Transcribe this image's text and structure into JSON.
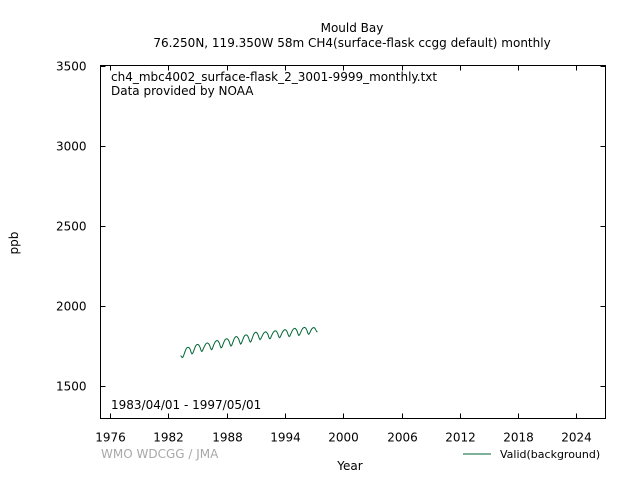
{
  "chart_data": {
    "type": "line",
    "title": "Mould Bay",
    "subtitle": "76.250N, 119.350W 58m    CH4(surface-flask ccgg default) monthly",
    "xlabel": "Year",
    "ylabel": "ppb",
    "xlim": [
      1975.0,
      2027.0
    ],
    "ylim": [
      1300,
      3500
    ],
    "xticks": [
      1976,
      1982,
      1988,
      1994,
      2000,
      2006,
      2012,
      2018,
      2024
    ],
    "yticks": [
      1500,
      2000,
      2500,
      3000,
      3500
    ],
    "grid": false,
    "legend_position": "bottom-right",
    "file_label": "ch4_mbc4002_surface-flask_2_3001-9999_monthly.txt",
    "provider_label": "Data provided by NOAA",
    "date_range_label": "1983/04/01 - 1997/05/01",
    "attribution": "WMO WDCGG / JMA",
    "series": [
      {
        "name": "Valid(background)",
        "color": "#006633",
        "x": [
          1983.25,
          1983.33,
          1983.42,
          1983.5,
          1983.58,
          1983.67,
          1983.75,
          1983.83,
          1983.92,
          1984.0,
          1984.08,
          1984.17,
          1984.25,
          1984.33,
          1984.42,
          1984.5,
          1984.58,
          1984.67,
          1984.75,
          1984.83,
          1984.92,
          1985.0,
          1985.08,
          1985.17,
          1985.25,
          1985.33,
          1985.42,
          1985.5,
          1985.58,
          1985.67,
          1985.75,
          1985.83,
          1985.92,
          1986.0,
          1986.08,
          1986.17,
          1986.25,
          1986.33,
          1986.42,
          1986.5,
          1986.58,
          1986.67,
          1986.75,
          1986.83,
          1986.92,
          1987.0,
          1987.08,
          1987.17,
          1987.25,
          1987.33,
          1987.42,
          1987.5,
          1987.58,
          1987.67,
          1987.75,
          1987.83,
          1987.92,
          1988.0,
          1988.08,
          1988.17,
          1988.25,
          1988.33,
          1988.42,
          1988.5,
          1988.58,
          1988.67,
          1988.75,
          1988.83,
          1988.92,
          1989.0,
          1989.08,
          1989.17,
          1989.25,
          1989.33,
          1989.42,
          1989.5,
          1989.58,
          1989.67,
          1989.75,
          1989.83,
          1989.92,
          1990.0,
          1990.08,
          1990.17,
          1990.25,
          1990.33,
          1990.42,
          1990.5,
          1990.58,
          1990.67,
          1990.75,
          1990.83,
          1990.92,
          1991.0,
          1991.08,
          1991.17,
          1991.25,
          1991.33,
          1991.42,
          1991.5,
          1991.58,
          1991.67,
          1991.75,
          1991.83,
          1991.92,
          1992.0,
          1992.08,
          1992.17,
          1992.25,
          1992.33,
          1992.42,
          1992.5,
          1992.58,
          1992.67,
          1992.75,
          1992.83,
          1992.92,
          1993.0,
          1993.08,
          1993.17,
          1993.25,
          1993.33,
          1993.42,
          1993.5,
          1993.58,
          1993.67,
          1993.75,
          1993.83,
          1993.92,
          1994.0,
          1994.08,
          1994.17,
          1994.25,
          1994.33,
          1994.42,
          1994.5,
          1994.58,
          1994.67,
          1994.75,
          1994.83,
          1994.92,
          1995.0,
          1995.08,
          1995.17,
          1995.25,
          1995.33,
          1995.42,
          1995.5,
          1995.58,
          1995.67,
          1995.75,
          1995.83,
          1995.92,
          1996.0,
          1996.08,
          1996.17,
          1996.25,
          1996.33,
          1996.42,
          1996.5,
          1996.58,
          1996.67,
          1996.75,
          1996.83,
          1996.92,
          1997.0,
          1997.08,
          1997.17,
          1997.25,
          1997.33
        ],
        "y": [
          1692,
          1686,
          1680,
          1684,
          1695,
          1712,
          1725,
          1735,
          1741,
          1744,
          1743,
          1738,
          1729,
          1712,
          1703,
          1707,
          1718,
          1733,
          1746,
          1755,
          1760,
          1762,
          1760,
          1753,
          1744,
          1728,
          1718,
          1722,
          1734,
          1746,
          1755,
          1764,
          1769,
          1771,
          1769,
          1763,
          1754,
          1739,
          1729,
          1732,
          1745,
          1760,
          1771,
          1779,
          1784,
          1786,
          1784,
          1777,
          1768,
          1751,
          1741,
          1744,
          1756,
          1771,
          1782,
          1791,
          1796,
          1797,
          1795,
          1789,
          1780,
          1764,
          1752,
          1754,
          1767,
          1782,
          1795,
          1804,
          1809,
          1811,
          1808,
          1801,
          1792,
          1776,
          1764,
          1768,
          1780,
          1794,
          1807,
          1815,
          1820,
          1821,
          1819,
          1813,
          1803,
          1787,
          1776,
          1780,
          1793,
          1808,
          1821,
          1830,
          1836,
          1838,
          1835,
          1828,
          1818,
          1802,
          1792,
          1796,
          1806,
          1817,
          1827,
          1834,
          1838,
          1840,
          1838,
          1832,
          1823,
          1806,
          1797,
          1800,
          1811,
          1823,
          1833,
          1840,
          1845,
          1847,
          1845,
          1839,
          1829,
          1813,
          1804,
          1807,
          1818,
          1830,
          1840,
          1847,
          1852,
          1854,
          1852,
          1846,
          1836,
          1820,
          1811,
          1814,
          1825,
          1837,
          1848,
          1855,
          1860,
          1862,
          1860,
          1853,
          1843,
          1827,
          1818,
          1821,
          1832,
          1844,
          1855,
          1862,
          1866,
          1868,
          1866,
          1860,
          1850,
          1834,
          1825,
          1828,
          1838,
          1849,
          1858,
          1863,
          1866,
          1866,
          1862,
          1852,
          1843,
          1838
        ]
      }
    ]
  }
}
